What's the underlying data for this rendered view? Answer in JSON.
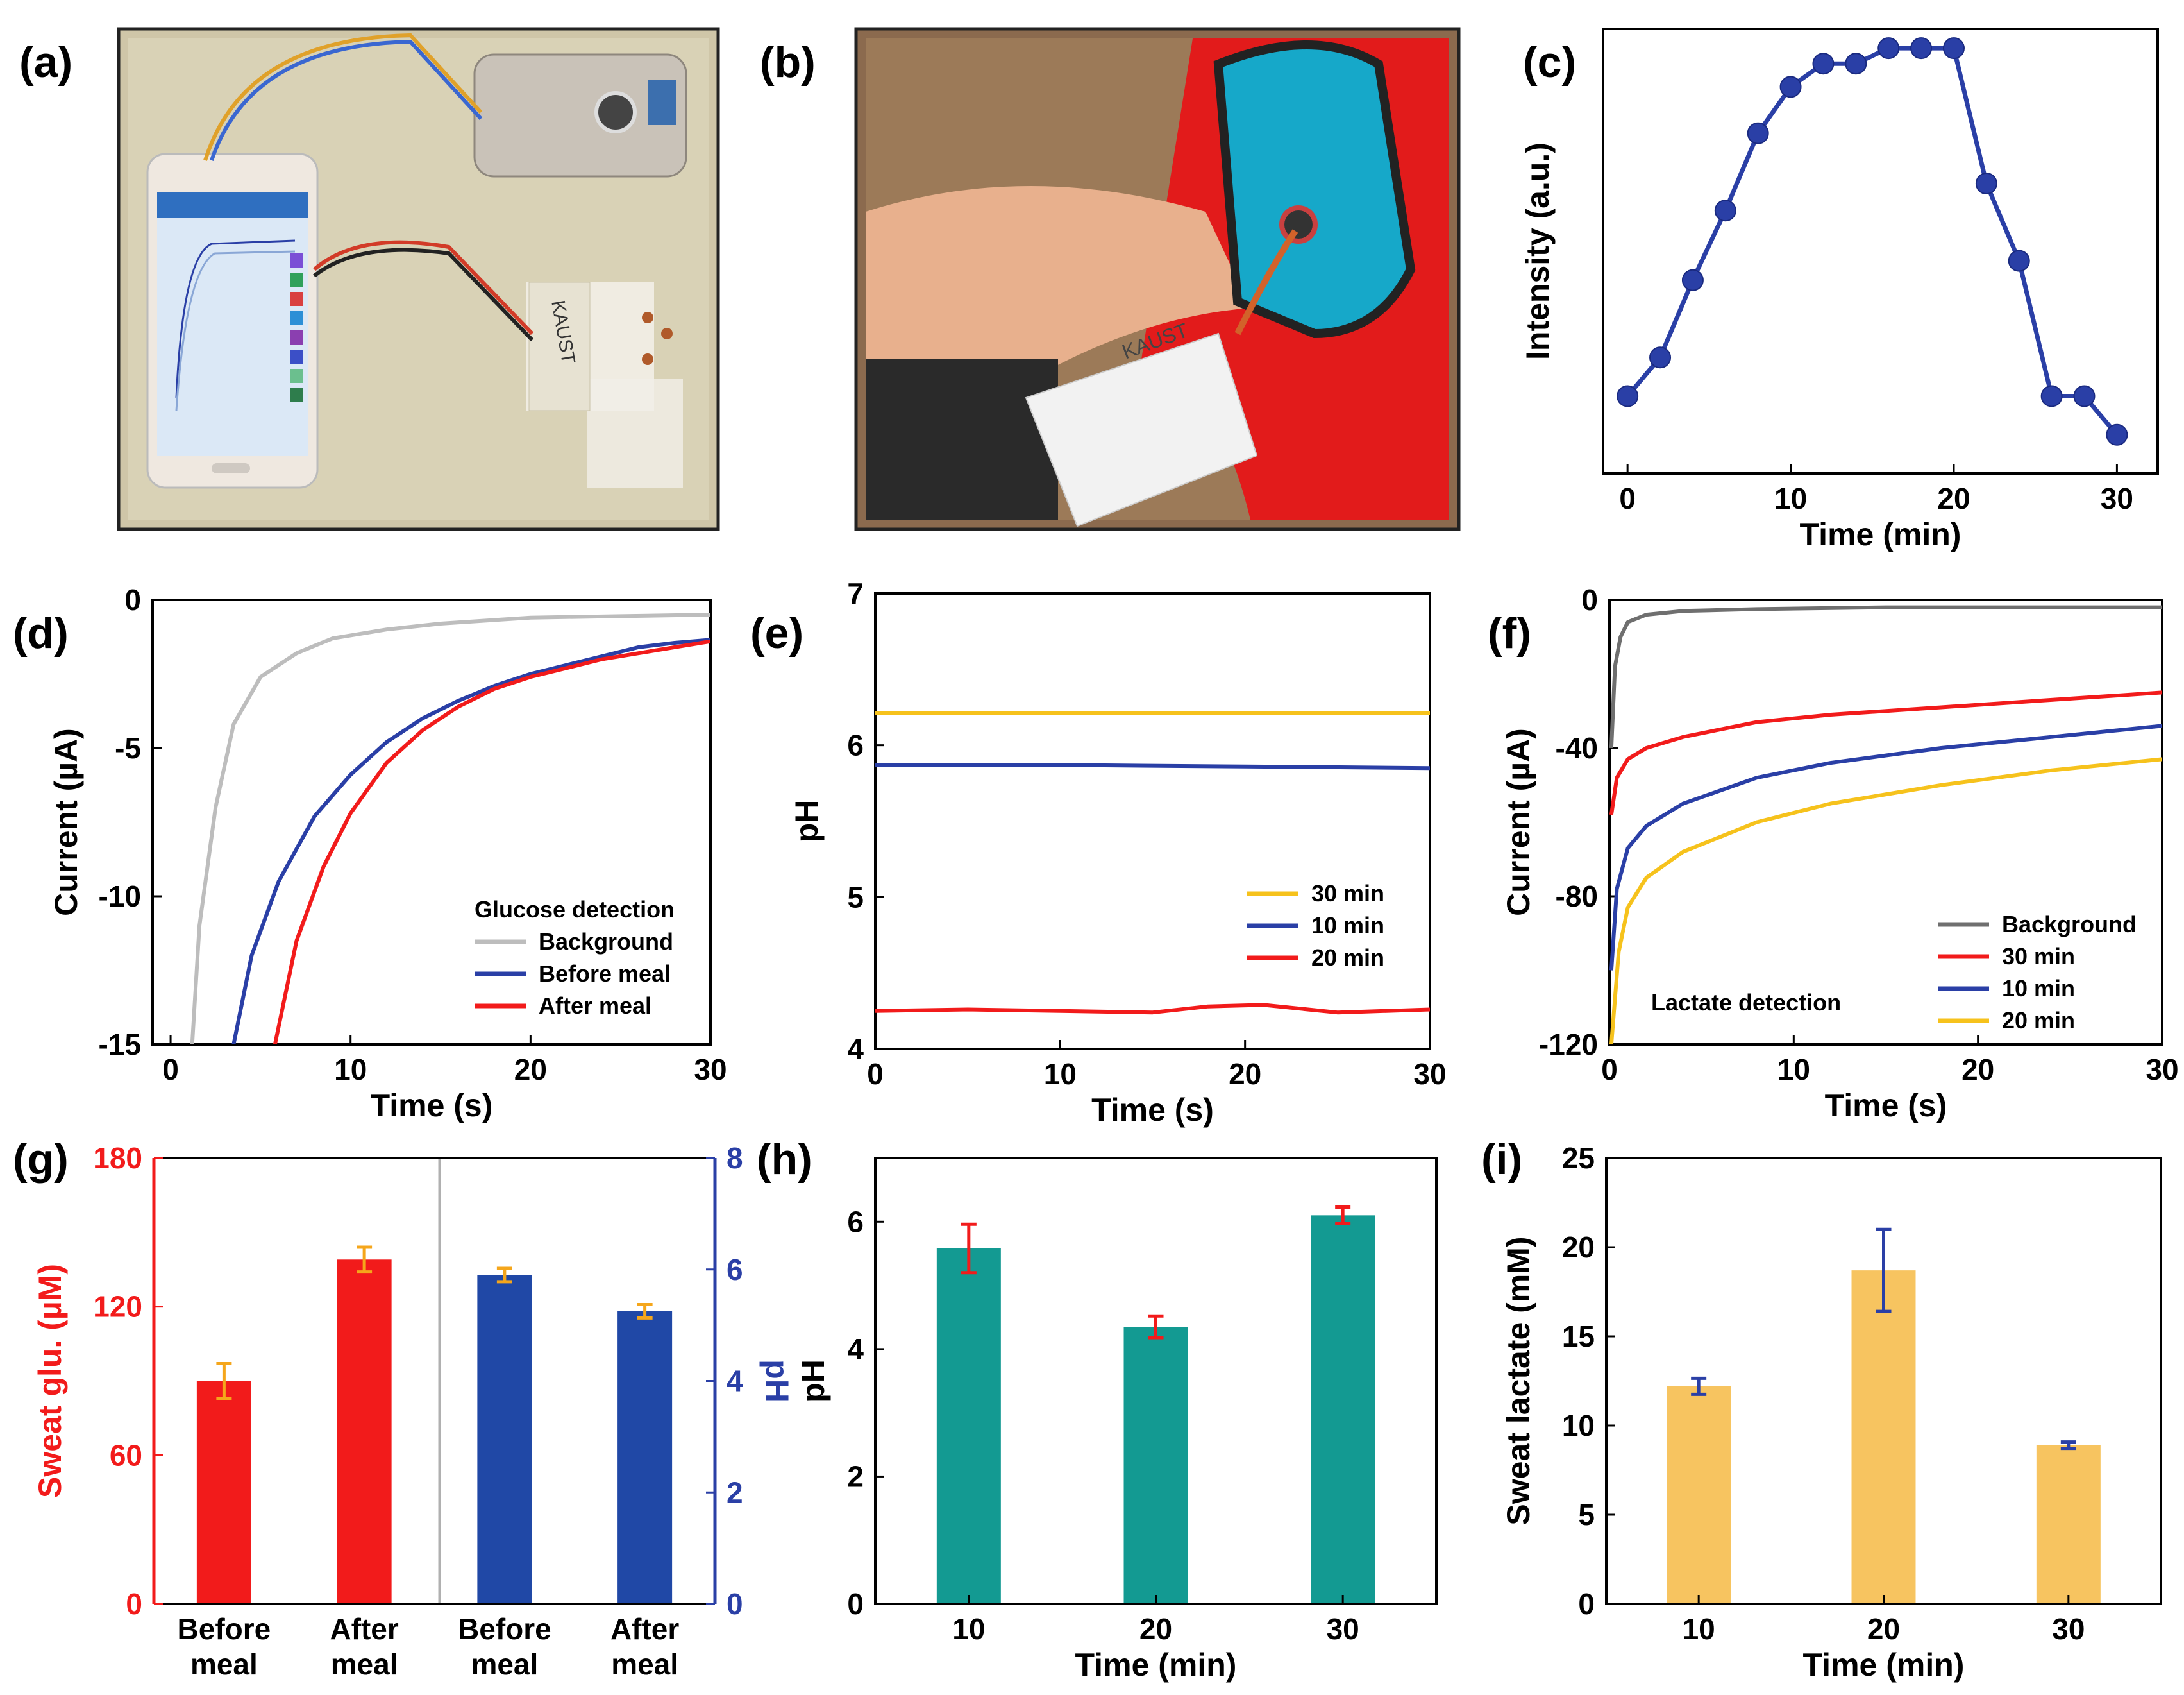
{
  "panels": {
    "a": {
      "label": "(a)",
      "photo_text": "KAUST"
    },
    "b": {
      "label": "(b)",
      "photo_text": "KAUST"
    }
  },
  "colors": {
    "blue": "#2a3fa6",
    "red": "#f21b1b",
    "gray": "#bdbdbd",
    "yellow": "#f6c21c",
    "teal": "#139a92",
    "tan": "#f7c460",
    "orange": "#f5a61b",
    "darkgray": "#6f6f6f"
  },
  "chart_data": [
    {
      "id": "c",
      "label": "(c)",
      "type": "line",
      "xlabel": "Time (min)",
      "ylabel": "Intensity (a.u.)",
      "xlim": [
        -1.5,
        32.5
      ],
      "xticks": [
        0,
        10,
        20,
        30
      ],
      "ylim": [
        0,
        1.15
      ],
      "yticks": [],
      "series": [
        {
          "name": "Intensity",
          "color": "#2a3fa6",
          "x": [
            0,
            2,
            4,
            6,
            8,
            10,
            12,
            14,
            16,
            18,
            20,
            22,
            24,
            26,
            28,
            30
          ],
          "y": [
            0.2,
            0.3,
            0.5,
            0.68,
            0.88,
            1.0,
            1.06,
            1.06,
            1.1,
            1.1,
            1.1,
            0.75,
            0.55,
            0.2,
            0.2,
            0.1
          ],
          "markers": true
        }
      ]
    },
    {
      "id": "d",
      "label": "(d)",
      "type": "line",
      "xlabel": "Time (s)",
      "ylabel": "Current (µA)",
      "xlim": [
        -1,
        30
      ],
      "xticks": [
        0,
        10,
        20,
        30
      ],
      "ylim": [
        -15,
        0
      ],
      "yticks": [
        0,
        -5,
        -10,
        -15
      ],
      "legend_title": "Glucose detection",
      "series": [
        {
          "name": "Background",
          "color": "#bdbdbd",
          "x": [
            1.2,
            1.6,
            2.5,
            3.5,
            5,
            7,
            9,
            12,
            15,
            20,
            25,
            30
          ],
          "y": [
            -15,
            -11,
            -7,
            -4.2,
            -2.6,
            -1.8,
            -1.3,
            -1.0,
            -0.8,
            -0.6,
            -0.55,
            -0.5
          ]
        },
        {
          "name": "Before meal",
          "color": "#2a3fa6",
          "x": [
            3.5,
            4.5,
            6,
            8,
            10,
            12,
            14,
            16,
            18,
            20,
            22,
            24,
            26,
            28,
            30
          ],
          "y": [
            -15,
            -12,
            -9.5,
            -7.3,
            -5.9,
            -4.8,
            -4.0,
            -3.4,
            -2.9,
            -2.5,
            -2.2,
            -1.9,
            -1.6,
            -1.45,
            -1.35
          ]
        },
        {
          "name": "After meal",
          "color": "#f21b1b",
          "x": [
            5.8,
            7,
            8.5,
            10,
            12,
            14,
            16,
            18,
            20,
            22,
            24,
            26,
            28,
            30
          ],
          "y": [
            -15,
            -11.5,
            -9.0,
            -7.2,
            -5.5,
            -4.4,
            -3.6,
            -3.0,
            -2.6,
            -2.3,
            -2.0,
            -1.8,
            -1.6,
            -1.4
          ]
        }
      ]
    },
    {
      "id": "e",
      "label": "(e)",
      "type": "line",
      "xlabel": "Time (s)",
      "ylabel": "pH",
      "xlim": [
        0,
        30
      ],
      "xticks": [
        0,
        10,
        20,
        30
      ],
      "ylim": [
        4,
        7
      ],
      "yticks": [
        4,
        5,
        6,
        7
      ],
      "series": [
        {
          "name": "30 min",
          "color": "#f6c21c",
          "x": [
            0,
            30
          ],
          "y": [
            6.21,
            6.21
          ]
        },
        {
          "name": "10 min",
          "color": "#2a3fa6",
          "x": [
            0,
            10,
            20,
            30
          ],
          "y": [
            5.87,
            5.87,
            5.86,
            5.85
          ]
        },
        {
          "name": "20 min",
          "color": "#f21b1b",
          "x": [
            0,
            5,
            10,
            15,
            18,
            21,
            25,
            30
          ],
          "y": [
            4.25,
            4.26,
            4.25,
            4.24,
            4.28,
            4.29,
            4.24,
            4.26
          ]
        }
      ]
    },
    {
      "id": "f",
      "label": "(f)",
      "type": "line",
      "xlabel": "Time (s)",
      "ylabel": "Current (µA)",
      "xlim": [
        0,
        30
      ],
      "xticks": [
        0,
        10,
        20,
        30
      ],
      "ylim": [
        -120,
        0
      ],
      "yticks": [
        0,
        -40,
        -80,
        -120
      ],
      "annotation": "Lactate detection",
      "series": [
        {
          "name": "Background",
          "color": "#6f6f6f",
          "x": [
            0.1,
            0.3,
            0.6,
            1,
            2,
            4,
            8,
            15,
            30
          ],
          "y": [
            -40,
            -18,
            -10,
            -6,
            -4,
            -3,
            -2.5,
            -2,
            -2
          ]
        },
        {
          "name": "30 min",
          "color": "#f21b1b",
          "x": [
            0.1,
            0.4,
            1,
            2,
            4,
            8,
            12,
            18,
            24,
            30
          ],
          "y": [
            -58,
            -48,
            -43,
            -40,
            -37,
            -33,
            -31,
            -29,
            -27,
            -25
          ]
        },
        {
          "name": "10 min",
          "color": "#2a3fa6",
          "x": [
            0.1,
            0.4,
            1,
            2,
            4,
            8,
            12,
            18,
            24,
            30
          ],
          "y": [
            -100,
            -78,
            -67,
            -61,
            -55,
            -48,
            -44,
            -40,
            -37,
            -34
          ]
        },
        {
          "name": "20 min",
          "color": "#f6c21c",
          "x": [
            0.1,
            0.5,
            1,
            2,
            4,
            8,
            12,
            18,
            24,
            30
          ],
          "y": [
            -120,
            -95,
            -83,
            -75,
            -68,
            -60,
            -55,
            -50,
            -46,
            -43
          ]
        }
      ]
    },
    {
      "id": "g",
      "label": "(g)",
      "type": "bar",
      "categories": [
        "Before meal",
        "After meal",
        "Before meal",
        "After meal"
      ],
      "ylabel": "Sweat glu. (µM)",
      "ylim": [
        0,
        180
      ],
      "yticks": [
        0,
        60,
        120,
        180
      ],
      "ylabel_right": "pH",
      "ylim_right": [
        0,
        8
      ],
      "yticks_right": [
        0,
        2,
        4,
        6,
        8
      ],
      "series": [
        {
          "name": "Sweat glucose",
          "axis": "left",
          "color": "#f21b1b",
          "err_color": "#f5a61b",
          "values": [
            90,
            139,
            null,
            null
          ],
          "errors": [
            7,
            5,
            null,
            null
          ]
        },
        {
          "name": "pH",
          "axis": "right",
          "color": "#2048a6",
          "err_color": "#f5a61b",
          "values": [
            null,
            null,
            5.9,
            5.25
          ],
          "errors": [
            null,
            null,
            0.12,
            0.12
          ]
        }
      ]
    },
    {
      "id": "h",
      "label": "(h)",
      "type": "bar",
      "categories": [
        "10",
        "20",
        "30"
      ],
      "xlabel": "Time (min)",
      "ylabel": "pH",
      "ylim": [
        0,
        7
      ],
      "yticks": [
        0,
        2,
        4,
        6
      ],
      "series": [
        {
          "name": "pH",
          "color": "#139a92",
          "err_color": "#f21b1b",
          "values": [
            5.58,
            4.35,
            6.1
          ],
          "errors": [
            0.38,
            0.17,
            0.13
          ]
        }
      ]
    },
    {
      "id": "i",
      "label": "(i)",
      "type": "bar",
      "categories": [
        "10",
        "20",
        "30"
      ],
      "xlabel": "Time (min)",
      "ylabel": "Sweat lactate (mM)",
      "ylim": [
        0,
        25
      ],
      "yticks": [
        0,
        5,
        10,
        15,
        20,
        25
      ],
      "series": [
        {
          "name": "Sweat lactate",
          "color": "#f7c460",
          "err_color": "#2a3fa6",
          "values": [
            12.2,
            18.7,
            8.9
          ],
          "errors": [
            0.45,
            2.3,
            0.18
          ]
        }
      ]
    }
  ]
}
